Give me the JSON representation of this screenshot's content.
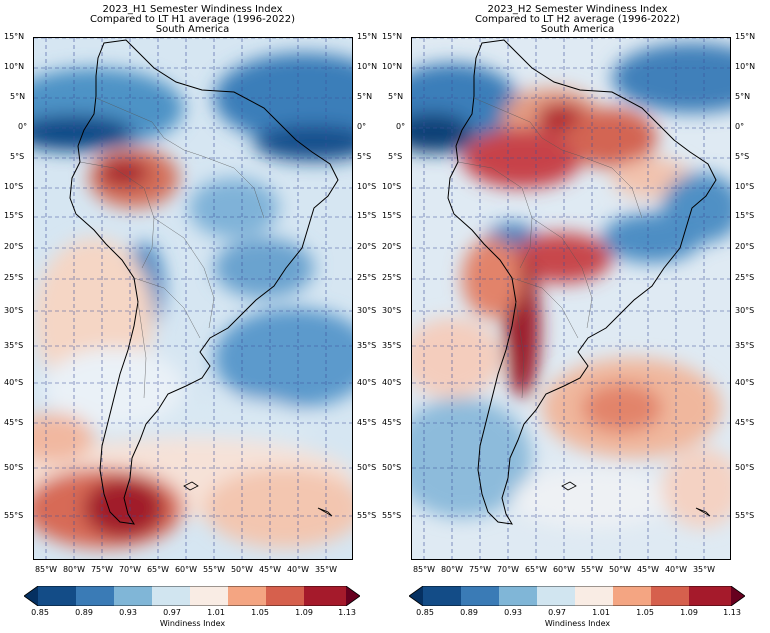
{
  "panels": [
    {
      "title_line1": "2023_H1 Semester Windiness Index",
      "title_line2": "Compared to LT H1 average (1996-2022)",
      "title_line3": "South America",
      "colorbar_label": "Windiness Index"
    },
    {
      "title_line1": "2023_H2 Semester Windiness Index",
      "title_line2": "Compared to LT H2 average (1996-2022)",
      "title_line3": "South America",
      "colorbar_label": "Windiness Index"
    }
  ],
  "lat_labels": [
    "15°N",
    "10°N",
    "5°N",
    "0°",
    "5°S",
    "10°S",
    "15°S",
    "20°S",
    "25°S",
    "30°S",
    "35°S",
    "40°S",
    "45°S",
    "50°S",
    "55°S"
  ],
  "lon_labels": [
    "85°W",
    "80°W",
    "75°W",
    "70°W",
    "65°W",
    "60°W",
    "55°W",
    "50°W",
    "45°W",
    "40°W",
    "35°W"
  ],
  "colorbar_ticks": [
    "0.85",
    "0.89",
    "0.93",
    "0.97",
    "1.01",
    "1.05",
    "1.09",
    "1.13"
  ],
  "colors": {
    "low": "#053061",
    "mid_low": "#4393c3",
    "neutral": "#f7f7f7",
    "mid_high": "#f4a582",
    "high": "#67001f",
    "gridline": "#3d4f9a",
    "coastline": "#000000"
  }
}
